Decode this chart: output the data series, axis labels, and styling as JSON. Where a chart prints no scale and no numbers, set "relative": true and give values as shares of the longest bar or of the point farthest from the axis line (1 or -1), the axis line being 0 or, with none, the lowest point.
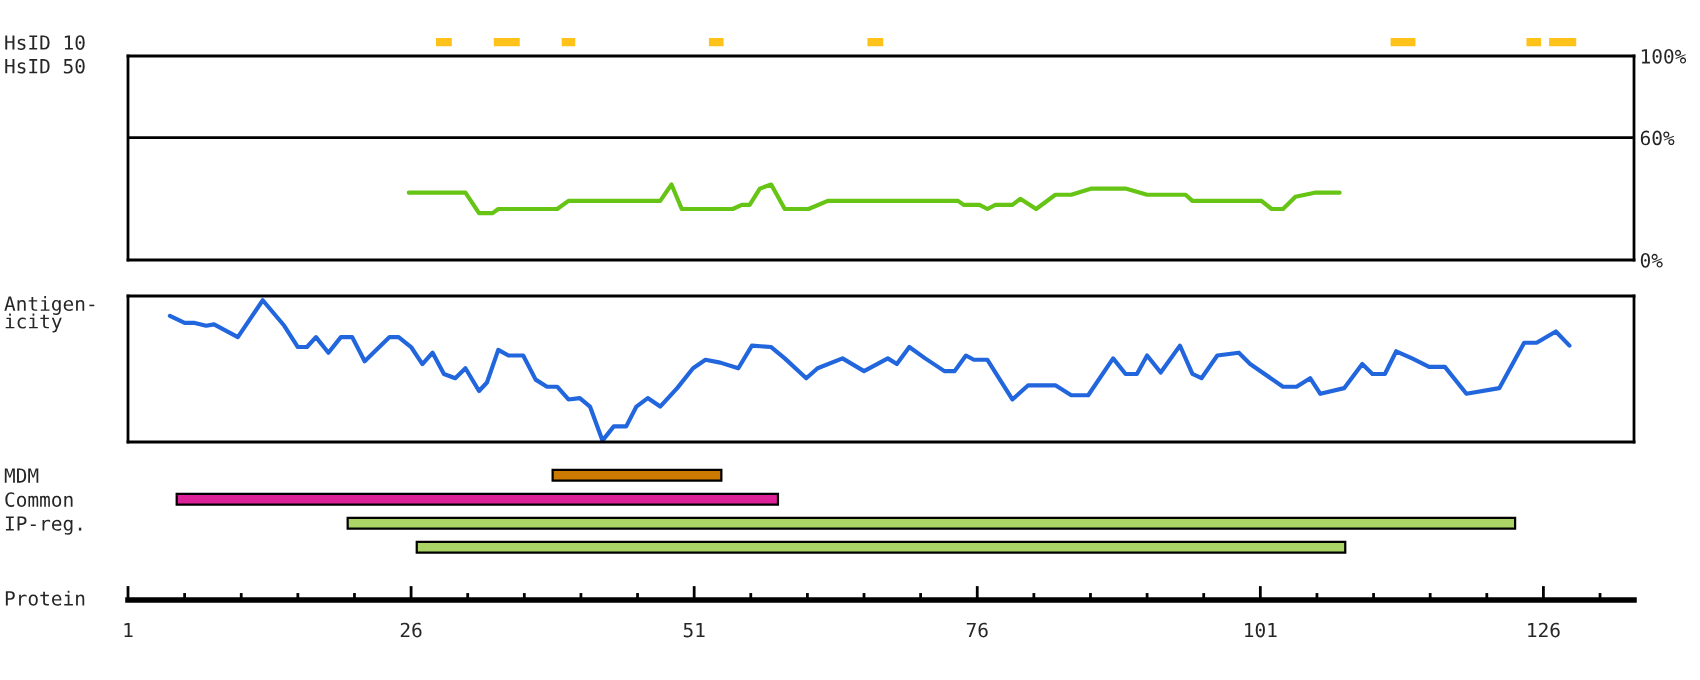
{
  "chart_data": [
    {
      "type": "bar",
      "orientation": "horizontal",
      "categories": [
        "HsID 10",
        "HsID 50"
      ],
      "xlim": [
        1,
        134
      ],
      "tick_labels": "y",
      "series": [
        {
          "color": "#ffc21a",
          "base": [
            28.3,
            null
          ],
          "values": [
            1.2,
            null
          ]
        },
        {
          "color": "#ffc21a",
          "base": [
            33.4,
            null
          ],
          "values": [
            2.1,
            null
          ]
        },
        {
          "color": "#ffc21a",
          "base": [
            39.4,
            null
          ],
          "values": [
            1.0,
            null
          ]
        },
        {
          "color": "#ffc21a",
          "base": [
            52.4,
            null
          ],
          "values": [
            1.1,
            null
          ]
        },
        {
          "color": "#ffc21a",
          "base": [
            66.4,
            null
          ],
          "values": [
            1.2,
            null
          ]
        },
        {
          "color": "#ffc21a",
          "base": [
            112.6,
            null
          ],
          "values": [
            2.0,
            null
          ]
        },
        {
          "color": "#ffc21a",
          "base": [
            124.6,
            null
          ],
          "values": [
            1.1,
            null
          ]
        },
        {
          "color": "#ffc21a",
          "base": [
            126.6,
            null
          ],
          "values": [
            2.2,
            null
          ]
        }
      ]
    },
    {
      "type": "line",
      "xlim": [
        1,
        134
      ],
      "ylim": [
        0,
        100
      ],
      "yticks": [
        {
          "value": 0,
          "label": "0%"
        },
        {
          "value": 60,
          "label": "60%"
        },
        {
          "value": 100,
          "label": "100%"
        }
      ],
      "tick_labels": "y",
      "ref_lines": [
        {
          "axis": "y",
          "value": 60,
          "color": "#000000"
        }
      ],
      "series": [
        {
          "color": "#66c414",
          "x": [
            25.8,
            30.8,
            32.0,
            33.2,
            33.7,
            38.9,
            39.9,
            48.0,
            49.0,
            49.9,
            54.4,
            55.2,
            55.9,
            56.8,
            57.8,
            59.0,
            61.1,
            62.8,
            74.3,
            74.8,
            76.2,
            76.9,
            77.6,
            79.1,
            79.8,
            81.2,
            82.9,
            84.3,
            86.1,
            89.1,
            91.0,
            94.4,
            95.0,
            101.1,
            102.0,
            103.0,
            104.1,
            105.8,
            108.0
          ],
          "values": [
            33,
            33,
            23,
            23,
            25,
            25,
            29,
            29,
            37,
            25,
            25,
            27,
            27,
            35,
            37,
            25,
            25,
            29,
            29,
            27,
            27,
            25,
            27,
            27,
            30,
            25,
            32,
            32,
            35,
            35,
            32,
            32,
            29,
            29,
            25,
            25,
            31,
            33,
            33
          ]
        }
      ]
    },
    {
      "type": "line",
      "relative": true,
      "ylabel": "Antigen-\nicity",
      "xlim": [
        1,
        134
      ],
      "tick_labels": false,
      "series": [
        {
          "color": "#2266dd",
          "x": [
            4.7,
            6.0,
            6.9,
            7.9,
            8.6,
            10.7,
            12.9,
            14.8,
            16.0,
            16.8,
            17.6,
            18.7,
            19.8,
            20.8,
            21.9,
            24.1,
            24.9,
            26.0,
            27.0,
            27.9,
            28.9,
            29.9,
            30.8,
            32.0,
            32.7,
            33.7,
            34.6,
            35.9,
            37.0,
            38.0,
            38.9,
            39.9,
            40.9,
            41.8,
            42.9,
            43.9,
            45.0,
            45.9,
            46.9,
            48.0,
            49.5,
            50.9,
            52.0,
            53.3,
            54.9,
            56.1,
            57.8,
            59.0,
            60.9,
            61.9,
            64.1,
            66.0,
            68.1,
            68.9,
            70.0,
            71.4,
            73.1,
            74.0,
            75.0,
            75.7,
            76.9,
            79.1,
            80.5,
            82.9,
            84.3,
            85.8,
            88.0,
            89.1,
            90.1,
            91.0,
            92.2,
            93.9,
            95.0,
            95.8,
            97.2,
            99.1,
            100.1,
            103.0,
            104.2,
            105.4,
            106.3,
            108.4,
            110.0,
            110.9,
            112.0,
            113.0,
            114.4,
            115.9,
            117.3,
            119.2,
            122.1,
            124.3,
            125.4,
            127.1,
            128.3
          ],
          "values": [
            0.89,
            0.84,
            0.84,
            0.82,
            0.83,
            0.74,
            1.0,
            0.82,
            0.67,
            0.67,
            0.74,
            0.63,
            0.74,
            0.74,
            0.57,
            0.74,
            0.74,
            0.67,
            0.55,
            0.63,
            0.48,
            0.45,
            0.52,
            0.36,
            0.42,
            0.65,
            0.61,
            0.61,
            0.44,
            0.39,
            0.39,
            0.3,
            0.31,
            0.25,
            0.01,
            0.11,
            0.11,
            0.25,
            0.31,
            0.25,
            0.38,
            0.52,
            0.58,
            0.56,
            0.52,
            0.68,
            0.67,
            0.59,
            0.45,
            0.52,
            0.59,
            0.5,
            0.59,
            0.55,
            0.67,
            0.59,
            0.5,
            0.5,
            0.61,
            0.58,
            0.58,
            0.3,
            0.4,
            0.4,
            0.33,
            0.33,
            0.59,
            0.48,
            0.48,
            0.61,
            0.49,
            0.68,
            0.48,
            0.45,
            0.61,
            0.63,
            0.55,
            0.39,
            0.39,
            0.45,
            0.34,
            0.38,
            0.55,
            0.48,
            0.48,
            0.64,
            0.59,
            0.53,
            0.53,
            0.34,
            0.38,
            0.7,
            0.7,
            0.78,
            0.68
          ]
        }
      ]
    },
    {
      "type": "bar",
      "orientation": "horizontal",
      "categories": [
        "MDM",
        "Common",
        "IP-reg.",
        null
      ],
      "xlabel": "Protein",
      "xlim": [
        1,
        134
      ],
      "base": [
        38.5,
        5.3,
        20.4,
        26.5
      ],
      "values": [
        14.9,
        53.1,
        103.1,
        82.0
      ],
      "colors": [
        "#cc7a00",
        "#dd2299",
        "#aad466",
        "#aad466"
      ],
      "xticks": [
        1,
        {
          "value": 6,
          "label": null
        },
        {
          "value": 11,
          "label": null
        },
        {
          "value": 16,
          "label": null
        },
        {
          "value": 21,
          "label": null
        },
        26,
        {
          "value": 31,
          "label": null
        },
        {
          "value": 36,
          "label": null
        },
        {
          "value": 41,
          "label": null
        },
        {
          "value": 46,
          "label": null
        },
        51,
        {
          "value": 56,
          "label": null
        },
        {
          "value": 61,
          "label": null
        },
        {
          "value": 66,
          "label": null
        },
        {
          "value": 71,
          "label": null
        },
        76,
        {
          "value": 81,
          "label": null
        },
        {
          "value": 86,
          "label": null
        },
        {
          "value": 91,
          "label": null
        },
        {
          "value": 96,
          "label": null
        },
        101,
        {
          "value": 106,
          "label": null
        },
        {
          "value": 111,
          "label": null
        },
        {
          "value": 116,
          "label": null
        },
        {
          "value": 121,
          "label": null
        },
        126,
        {
          "value": 131,
          "label": null
        }
      ]
    }
  ]
}
